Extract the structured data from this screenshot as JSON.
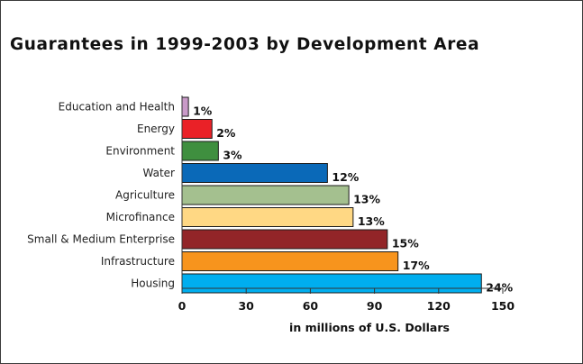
{
  "chart_data": {
    "type": "bar",
    "orientation": "horizontal",
    "title": "Guarantees in 1999-2003 by Development Area",
    "xlabel": "in millions of U.S. Dollars",
    "ylabel": "",
    "xlim": [
      0,
      150
    ],
    "xticks": [
      "0",
      "30",
      "60",
      "90",
      "120",
      "150"
    ],
    "grid": false,
    "legend": "none",
    "categories": [
      "Education and Health",
      "Energy",
      "Environment",
      "Water",
      "Agriculture",
      "Microfinance",
      "Small & Medium Enterprise",
      "Infrastructure",
      "Housing"
    ],
    "values": [
      3,
      14,
      17,
      68,
      78,
      80,
      96,
      101,
      140
    ],
    "labels": [
      "1%",
      "2%",
      "3%",
      "12%",
      "13%",
      "13%",
      "15%",
      "17%",
      "24%"
    ],
    "colors": [
      "#c99ac8",
      "#ea2127",
      "#3f8f3f",
      "#0a69b8",
      "#a4c08f",
      "#ffd884",
      "#922528",
      "#f7941d",
      "#00aeef"
    ]
  }
}
